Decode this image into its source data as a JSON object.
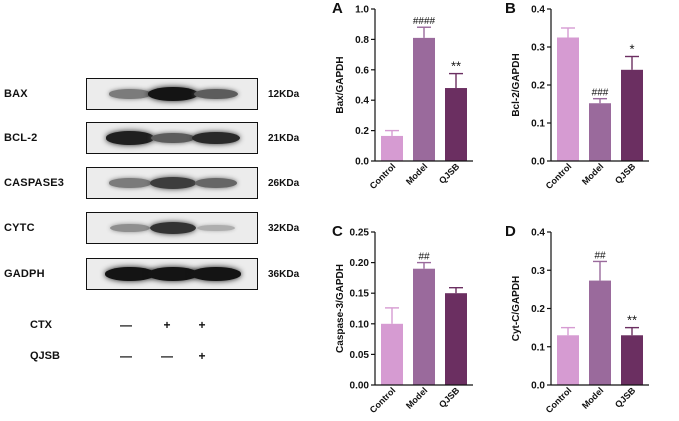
{
  "western_blot": {
    "rows": [
      {
        "protein": "BAX",
        "kda": "12KDa",
        "intensities": [
          0.45,
          0.95,
          0.6
        ]
      },
      {
        "protein": "BCL-2",
        "kda": "21KDa",
        "intensities": [
          0.9,
          0.6,
          0.85
        ]
      },
      {
        "protein": "CASPASE3",
        "kda": "26KDa",
        "intensities": [
          0.45,
          0.75,
          0.55
        ]
      },
      {
        "protein": "CYTC",
        "kda": "32KDa",
        "intensities": [
          0.35,
          0.8,
          0.2
        ]
      },
      {
        "protein": "GADPH",
        "kda": "36KDa",
        "intensities": [
          0.95,
          0.95,
          0.95
        ]
      }
    ],
    "treatments": [
      {
        "name": "CTX",
        "signs": [
          "—",
          "+",
          "+"
        ]
      },
      {
        "name": "QJSB",
        "signs": [
          "—",
          "—",
          "+"
        ]
      }
    ]
  },
  "chart_data": [
    {
      "type": "bar",
      "panel_label": "A",
      "ylabel": "Bax/GAPDH",
      "categories": [
        "Control",
        "Model",
        "QJSB"
      ],
      "values": [
        0.165,
        0.81,
        0.48
      ],
      "errors": [
        0.035,
        0.07,
        0.095
      ],
      "significance": [
        "",
        "####",
        "**"
      ],
      "ylim": [
        0,
        1.0
      ],
      "yticks": [
        "0.0",
        "0.2",
        "0.4",
        "0.6",
        "0.8",
        "1.0"
      ],
      "colors": [
        "#d69bd2",
        "#9a6a9c",
        "#6b2f61"
      ]
    },
    {
      "type": "bar",
      "panel_label": "B",
      "ylabel": "Bcl-2/GAPDH",
      "categories": [
        "Control",
        "Model",
        "QJSB"
      ],
      "values": [
        0.325,
        0.152,
        0.24
      ],
      "errors": [
        0.025,
        0.012,
        0.035
      ],
      "significance": [
        "",
        "###",
        "*"
      ],
      "ylim": [
        0,
        0.4
      ],
      "yticks": [
        "0.0",
        "0.1",
        "0.2",
        "0.3",
        "0.4"
      ],
      "colors": [
        "#d69bd2",
        "#9a6a9c",
        "#6b2f61"
      ]
    },
    {
      "type": "bar",
      "panel_label": "C",
      "ylabel": "Caspase-3/GAPDH",
      "categories": [
        "Control",
        "Model",
        "QJSB"
      ],
      "values": [
        0.1,
        0.19,
        0.15
      ],
      "errors": [
        0.026,
        0.01,
        0.009
      ],
      "significance": [
        "",
        "##",
        ""
      ],
      "ylim": [
        0,
        0.25
      ],
      "yticks": [
        "0.00",
        "0.05",
        "0.10",
        "0.15",
        "0.20",
        "0.25"
      ],
      "colors": [
        "#d69bd2",
        "#9a6a9c",
        "#6b2f61"
      ]
    },
    {
      "type": "bar",
      "panel_label": "D",
      "ylabel": "Cyt-C/GAPDH",
      "categories": [
        "Control",
        "Model",
        "QJSB"
      ],
      "values": [
        0.13,
        0.273,
        0.13
      ],
      "errors": [
        0.02,
        0.05,
        0.02
      ],
      "significance": [
        "",
        "##",
        "**"
      ],
      "ylim": [
        0,
        0.4
      ],
      "yticks": [
        "0.0",
        "0.1",
        "0.2",
        "0.3",
        "0.4"
      ],
      "colors": [
        "#d69bd2",
        "#9a6a9c",
        "#6b2f61"
      ]
    }
  ]
}
